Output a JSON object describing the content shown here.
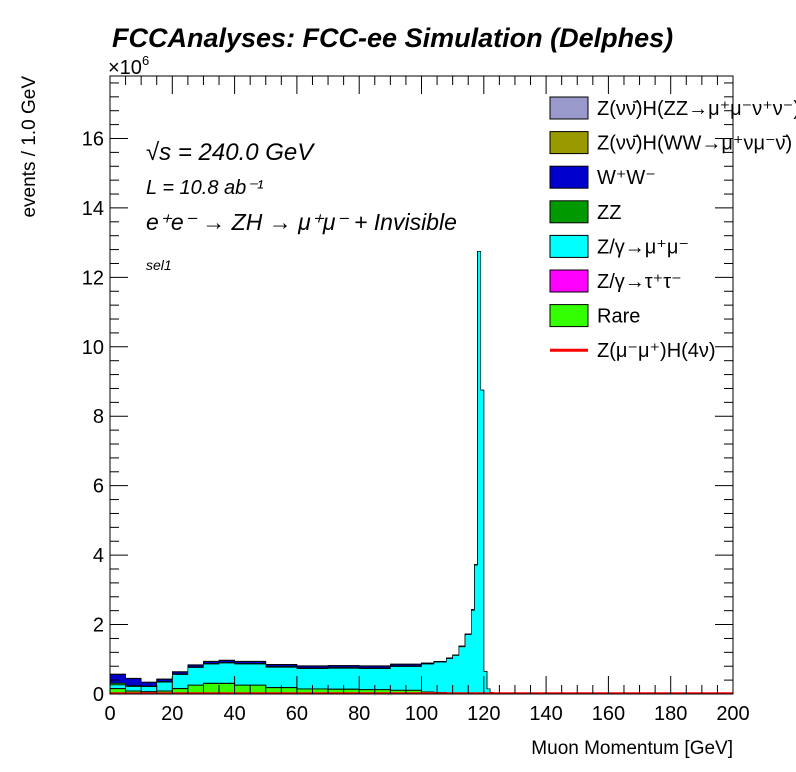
{
  "chart_data": {
    "type": "area",
    "stacked": true,
    "title": "FCCAnalyses: FCC-ee Simulation (Delphes)",
    "xlabel": "Muon Momentum [GeV]",
    "ylabel": "events / 1.0 GeV",
    "exponent_label": "×10^6",
    "xlim": [
      0,
      200
    ],
    "ylim": [
      0,
      17.8
    ],
    "x_ticks": [
      "0",
      "20",
      "40",
      "60",
      "80",
      "100",
      "120",
      "140",
      "160",
      "180",
      "200"
    ],
    "y_ticks": [
      "0",
      "2",
      "4",
      "6",
      "8",
      "10",
      "12",
      "14",
      "16"
    ],
    "annotations": {
      "energy": "√s = 240.0 GeV",
      "lumi": "L = 10.8 ab⁻¹",
      "process": "e⁺e⁻ → ZH → μ⁺μ⁻ + Invisible",
      "selection": "sel1"
    },
    "legend_position": "top-right",
    "x": [
      0,
      5,
      10,
      15,
      20,
      25,
      30,
      35,
      40,
      50,
      60,
      70,
      80,
      90,
      100,
      104,
      108,
      110,
      112,
      114,
      116,
      117,
      118,
      119,
      120,
      121,
      122,
      123,
      125,
      200
    ],
    "series": [
      {
        "name": "Rare",
        "color": "#33ff00",
        "values": [
          0.15,
          0.08,
          0.06,
          0.08,
          0.15,
          0.25,
          0.3,
          0.3,
          0.25,
          0.18,
          0.14,
          0.13,
          0.12,
          0.1,
          0.06,
          0.04,
          0.02,
          0.01,
          0.01,
          0.01,
          0.01,
          0.01,
          0,
          0,
          0,
          0,
          0,
          0,
          0,
          0
        ]
      },
      {
        "name": "Z/γ→τ⁺τ⁻",
        "color": "#ff00ff",
        "values": [
          0.01,
          0.01,
          0.01,
          0.01,
          0.01,
          0.01,
          0.01,
          0.01,
          0.01,
          0.01,
          0.01,
          0.01,
          0.01,
          0.01,
          0,
          0,
          0,
          0,
          0,
          0,
          0,
          0,
          0,
          0,
          0,
          0,
          0,
          0,
          0,
          0
        ]
      },
      {
        "name": "Z/γ→μ⁺μ⁻",
        "color": "#00ffff",
        "values": [
          0.1,
          0.12,
          0.14,
          0.25,
          0.4,
          0.5,
          0.55,
          0.58,
          0.6,
          0.58,
          0.58,
          0.6,
          0.6,
          0.68,
          0.8,
          0.88,
          1.0,
          1.1,
          1.35,
          1.7,
          2.4,
          3.7,
          12.75,
          8.75,
          0.65,
          0.15,
          0.05,
          0.02,
          0,
          0
        ]
      },
      {
        "name": "ZZ",
        "color": "#009900",
        "values": [
          0.05,
          0.03,
          0.02,
          0.02,
          0.02,
          0.02,
          0.02,
          0.02,
          0.02,
          0.02,
          0.02,
          0.02,
          0.02,
          0.02,
          0.01,
          0.01,
          0.01,
          0.01,
          0.01,
          0.01,
          0.01,
          0.01,
          0,
          0,
          0,
          0,
          0,
          0,
          0,
          0
        ]
      },
      {
        "name": "W⁺W⁻",
        "color": "#0000cc",
        "values": [
          0.25,
          0.2,
          0.1,
          0.06,
          0.05,
          0.05,
          0.05,
          0.05,
          0.05,
          0.05,
          0.05,
          0.05,
          0.05,
          0.04,
          0.02,
          0.01,
          0.01,
          0.01,
          0.01,
          0.01,
          0.01,
          0.01,
          0,
          0,
          0,
          0,
          0,
          0,
          0,
          0
        ]
      },
      {
        "name": "Z(νν̄)H(WW→μ⁺νμ⁻ν̄)",
        "color": "#999900",
        "values": [
          0.01,
          0.01,
          0.01,
          0.01,
          0.01,
          0.01,
          0.01,
          0.01,
          0.01,
          0.01,
          0.01,
          0.01,
          0.01,
          0.01,
          0,
          0,
          0,
          0,
          0,
          0,
          0,
          0,
          0,
          0,
          0,
          0,
          0,
          0,
          0,
          0
        ]
      },
      {
        "name": "Z(νν̄)H(ZZ→μ⁺μ⁻ν⁺ν⁻)",
        "color": "#9999cc",
        "values": [
          0.005,
          0.005,
          0.005,
          0.005,
          0.005,
          0.005,
          0.005,
          0.005,
          0.005,
          0.005,
          0.005,
          0.005,
          0.005,
          0.005,
          0,
          0,
          0,
          0,
          0,
          0,
          0,
          0,
          0,
          0,
          0,
          0,
          0,
          0,
          0,
          0
        ]
      }
    ],
    "signal": {
      "name": "Z(μ⁻μ⁺)H(4ν)",
      "color": "#ff0000",
      "values": [
        0.02,
        0.02,
        0.02,
        0.02,
        0.02,
        0.02,
        0.02,
        0.02,
        0.02,
        0.02,
        0.02,
        0.02,
        0.02,
        0.02,
        0.02,
        0.02,
        0.02,
        0.02,
        0.02,
        0.02,
        0.02,
        0.02,
        0.02,
        0.02,
        0.02,
        0.02,
        0.02,
        0.02,
        0.02,
        0.02
      ]
    },
    "legend_entries": [
      {
        "label": "Z(νν̄)H(ZZ→μ⁺μ⁻ν⁺ν⁻)",
        "color": "#9999cc",
        "kind": "box"
      },
      {
        "label": "Z(νν̄)H(WW→μ⁺νμ⁻ν̄)",
        "color": "#999900",
        "kind": "box"
      },
      {
        "label": "W⁺W⁻",
        "color": "#0000cc",
        "kind": "box"
      },
      {
        "label": "ZZ",
        "color": "#009900",
        "kind": "box"
      },
      {
        "label": "Z/γ→μ⁺μ⁻",
        "color": "#00ffff",
        "kind": "box"
      },
      {
        "label": "Z/γ→τ⁺τ⁻",
        "color": "#ff00ff",
        "kind": "box"
      },
      {
        "label": "Rare",
        "color": "#33ff00",
        "kind": "box"
      },
      {
        "label": "Z(μ⁻μ⁺)H(4ν)",
        "color": "#ff0000",
        "kind": "line"
      }
    ]
  }
}
